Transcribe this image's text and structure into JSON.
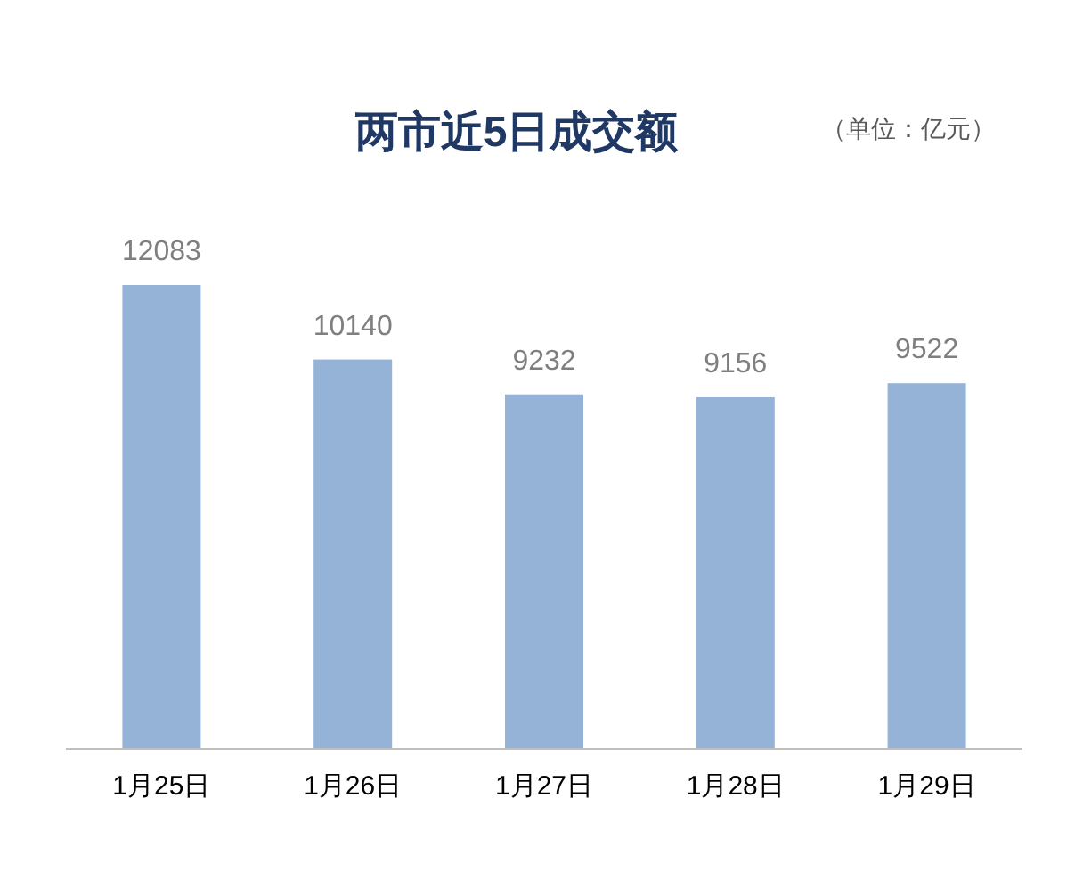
{
  "chart_data": {
    "type": "bar",
    "title": "两市近5日成交额",
    "subtitle": "（单位：亿元）",
    "categories": [
      "1月25日",
      "1月26日",
      "1月27日",
      "1月28日",
      "1月29日"
    ],
    "values": [
      12083,
      10140,
      9232,
      9156,
      9522
    ],
    "color": "#95b3d7",
    "data_labels": true
  }
}
